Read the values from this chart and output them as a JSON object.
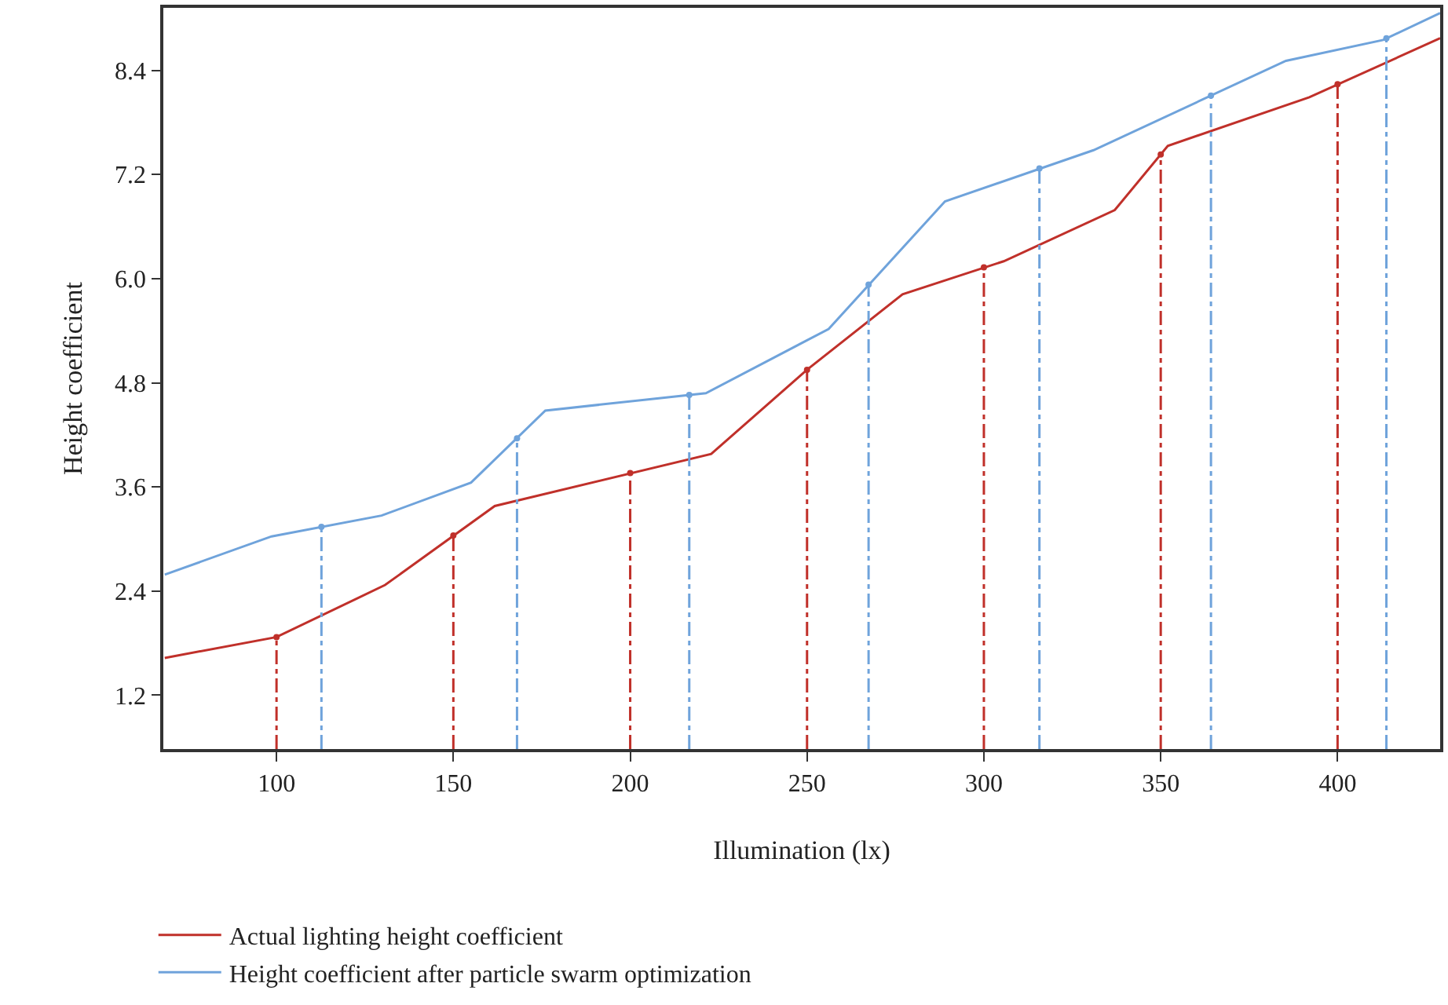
{
  "chart_data": {
    "type": "line",
    "xlabel": "Illumination (lx)",
    "ylabel": "Height coefficient",
    "xlim": [
      68,
      429
    ],
    "ylim": [
      0.58,
      9.12
    ],
    "xticks": [
      100,
      150,
      200,
      250,
      300,
      350,
      400
    ],
    "yticks": [
      1.2,
      2.4,
      3.6,
      4.8,
      {
        "value": 6,
        "label": "6.0"
      },
      7.2,
      8.4
    ],
    "legend": "bottom left",
    "marker": "none",
    "line_style": "solid",
    "series": [
      {
        "name": "Actual lighting height coefficient",
        "color": "#c0302a",
        "x": [
          68.4,
          100,
          130.7,
          161.7,
          222.9,
          250,
          277,
          305.6,
          337,
          352,
          392,
          429
        ],
        "values": [
          1.63,
          1.87,
          2.47,
          3.38,
          3.98,
          4.95,
          5.82,
          6.2,
          6.79,
          7.53,
          8.09,
          8.77
        ]
      },
      {
        "name": "Height coefficient after particle swarm optimization",
        "color": "#6fa3db",
        "x": [
          68.4,
          98.6,
          129.7,
          155,
          176,
          221.4,
          256.1,
          289,
          331,
          385.4,
          412.9,
          429
        ],
        "values": [
          2.59,
          3.03,
          3.27,
          3.65,
          4.48,
          4.68,
          5.42,
          6.89,
          7.48,
          8.51,
          8.75,
          9.06
        ]
      },
      {
        "type": "lollipop",
        "color": "#c0302a",
        "line_style": "dashed",
        "marker": "circle",
        "x": [
          100,
          150,
          200,
          250,
          300,
          350,
          400
        ],
        "values": [
          1.87,
          3.04,
          3.76,
          4.95,
          6.13,
          7.43,
          8.24
        ]
      },
      {
        "type": "lollipop",
        "color": "#6fa3db",
        "line_style": "dashed",
        "marker": "circle",
        "x": [
          112.7,
          168,
          216.7,
          267.4,
          315.7,
          364.2,
          413.8
        ],
        "values": [
          3.14,
          4.16,
          4.66,
          5.93,
          7.27,
          8.11,
          8.77
        ]
      }
    ]
  }
}
